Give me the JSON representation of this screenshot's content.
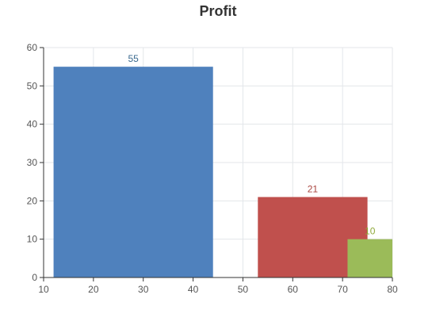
{
  "chart_data": {
    "type": "bar",
    "title": "Profit",
    "xlabel": "",
    "ylabel": "",
    "xlim": [
      10,
      80
    ],
    "ylim": [
      0,
      60
    ],
    "x_ticks": [
      10,
      20,
      30,
      40,
      50,
      60,
      70,
      80
    ],
    "y_ticks": [
      0,
      10,
      20,
      30,
      40,
      50,
      60
    ],
    "grid": true,
    "bars": [
      {
        "x0": 12,
        "x1": 44,
        "value": 55,
        "label": "55",
        "color": "#4f81bd",
        "label_color": "#3b6a8f"
      },
      {
        "x0": 53,
        "x1": 75,
        "value": 21,
        "label": "21",
        "color": "#c0504d",
        "label_color": "#a9453f"
      },
      {
        "x0": 71,
        "x1": 80,
        "value": 10,
        "label": "10",
        "color": "#9bbb59",
        "label_color": "#8fa83a"
      }
    ]
  }
}
